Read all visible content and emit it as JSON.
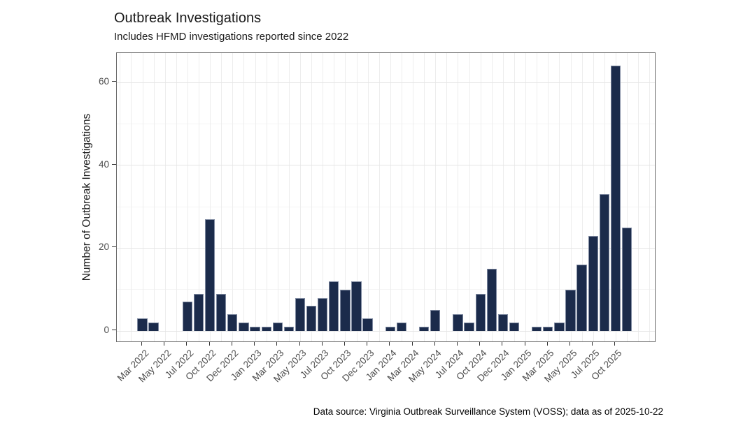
{
  "header": {
    "title": "Outbreak Investigations",
    "subtitle": "Includes HFMD investigations reported since 2022"
  },
  "footer": {
    "text": "Data source: Virginia Outbreak Surveillance System (VOSS); data as of 2025-10-22"
  },
  "chart_data": {
    "type": "bar",
    "title": "Outbreak Investigations",
    "subtitle": "Includes HFMD investigations reported since 2022",
    "xlabel": "",
    "ylabel": "Number of Outbreak Investigations",
    "y_ticks": [
      0,
      20,
      40,
      60
    ],
    "ylim": [
      0,
      67
    ],
    "legend": "none",
    "grid": "light gray horizontal major+minor lines and vertical line per month slot on white panel",
    "bar_color": "#1b2b4b",
    "bar_border_color": "#7e89a0",
    "n_slots": 44,
    "ticks_every_n_slots": 2,
    "x_tick_labels": [
      "Mar 2022",
      "May 2022",
      "Jul 2022",
      "Oct 2022",
      "Dec 2022",
      "Jan 2023",
      "Mar 2023",
      "May 2023",
      "Jul 2023",
      "Oct 2023",
      "Dec 2023",
      "Jan 2024",
      "Mar 2024",
      "May 2024",
      "Jul 2024",
      "Oct 2024",
      "Dec 2024",
      "Jan 2025",
      "Mar 2025",
      "May 2025",
      "Jul 2025",
      "Oct 2025"
    ],
    "x_axis_note": "bars sit on 44 evenly spaced monthly slots; tick label k marks slot 2k; slots with value 0 show no bar",
    "values_by_slot": [
      3,
      2,
      0,
      0,
      7,
      9,
      27,
      9,
      4,
      2,
      1,
      1,
      2,
      1,
      8,
      6,
      8,
      12,
      10,
      12,
      3,
      0,
      1,
      2,
      0,
      1,
      5,
      0,
      4,
      2,
      9,
      15,
      4,
      2,
      0,
      1,
      1,
      2,
      10,
      16,
      23,
      33,
      64,
      25
    ]
  }
}
